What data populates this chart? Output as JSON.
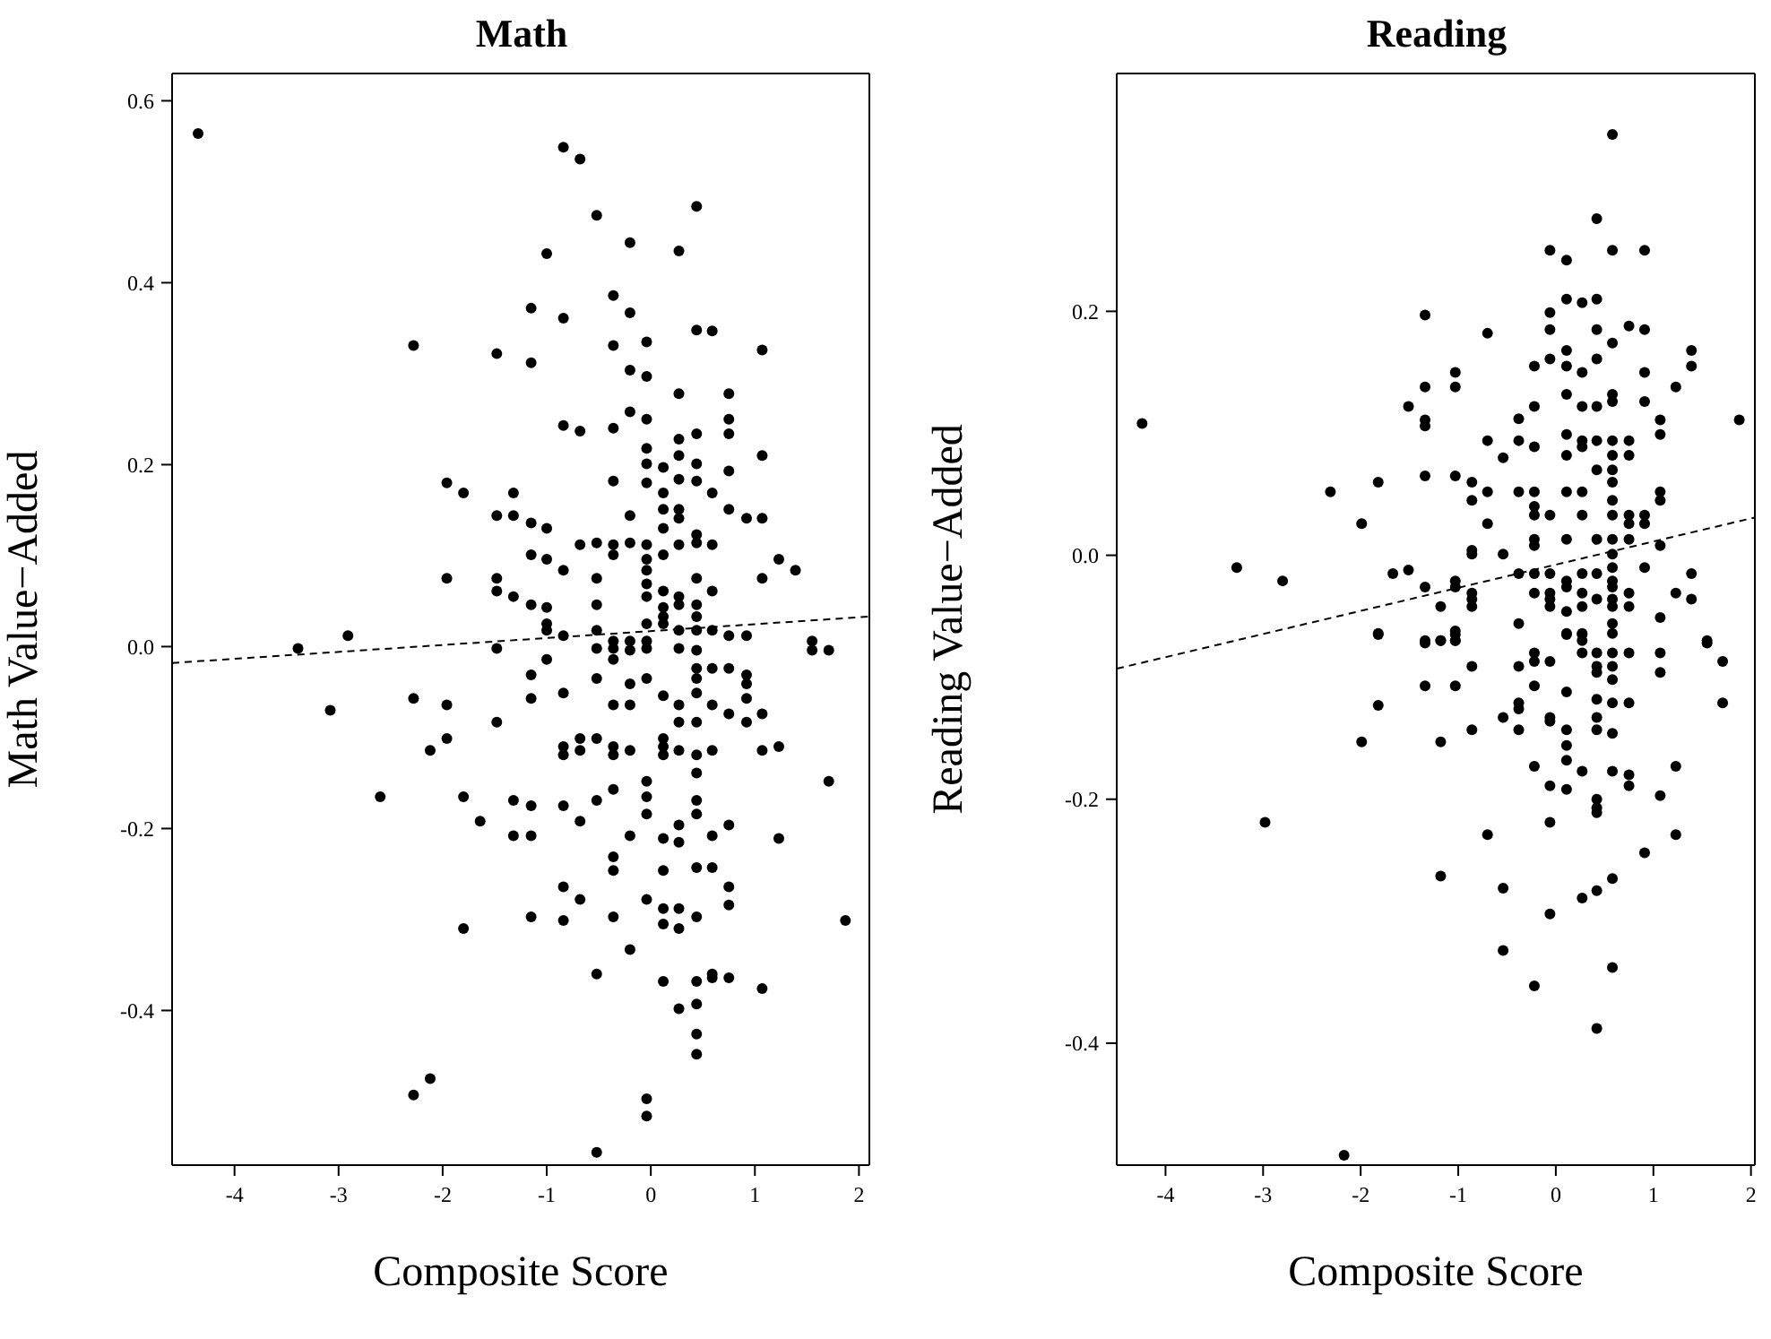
{
  "chart_data": [
    {
      "type": "scatter",
      "title": "Math",
      "xlabel": "Composite Score",
      "ylabel": "Math Value−Added",
      "xlim": [
        -4.6,
        2.1
      ],
      "ylim": [
        -0.57,
        0.63
      ],
      "xticks": [
        -4,
        -3,
        -2,
        -1,
        0,
        1,
        2
      ],
      "yticks": [
        -0.4,
        -0.2,
        {
          "value": 0,
          "label": "0.0"
        },
        0.2,
        0.4,
        0.6
      ],
      "grid": false,
      "marker": "circle",
      "series": [
        {
          "type": "scatter",
          "color": "#000000",
          "x": [
            -4.35,
            -0.84,
            -0.68,
            -0.52,
            0.44,
            -0.2,
            0.27,
            -1.0,
            -0.36,
            -1.15,
            -0.2,
            -0.84,
            0.44,
            0.59,
            -2.28,
            -1.48,
            -1.15,
            -0.36,
            -0.04,
            1.07,
            -0.2,
            -0.04,
            0.27,
            0.75,
            -0.2,
            -0.04,
            0.75,
            -0.84,
            -0.68,
            -0.36,
            0.27,
            0.44,
            -0.04,
            0.75,
            0.27,
            1.07,
            -0.04,
            0.12,
            0.44,
            0.75,
            0.27,
            0.44,
            -0.36,
            -0.04,
            -1.96,
            -1.8,
            -1.32,
            0.12,
            0.59,
            0.12,
            0.27,
            -1.48,
            -1.32,
            -0.2,
            0.27,
            0.75,
            0.92,
            1.07,
            -1.15,
            -1.0,
            0.12,
            0.44,
            -0.68,
            -0.52,
            -0.36,
            -0.2,
            -0.04,
            0.27,
            0.44,
            0.59,
            0.12,
            -0.04,
            -0.36,
            1.23,
            1.39,
            -1.15,
            -1.0,
            -0.84,
            -1.96,
            -1.48,
            -1.48,
            -1.32,
            -1.15,
            -1.0,
            -1.0,
            -0.52,
            -0.52,
            -0.04,
            -0.04,
            -0.04,
            0.12,
            0.12,
            0.12,
            0.27,
            0.27,
            0.44,
            0.44,
            0.44,
            0.59,
            0.44,
            0.27,
            0.12,
            -0.04,
            1.07,
            -2.91,
            -1.0,
            -0.84,
            -0.52,
            0.75,
            0.92,
            1.55,
            -0.36,
            -0.2,
            -0.04,
            0.59,
            -3.39,
            -1.48,
            -1.0,
            -1.15,
            -1.15,
            -0.84,
            -0.52,
            -0.52,
            -0.36,
            -0.36,
            -0.2,
            -0.04,
            0.27,
            0.44,
            0.44,
            0.44,
            0.44,
            0.59,
            0.75,
            0.92,
            0.92,
            1.55,
            1.71,
            -3.08,
            -2.28,
            -1.96,
            -2.12,
            -1.96,
            -1.48,
            -0.84,
            -0.68,
            -0.68,
            -0.84,
            -0.52,
            -0.36,
            -0.36,
            -0.2,
            -0.36,
            -0.2,
            -0.2,
            -0.04,
            0.12,
            0.27,
            0.27,
            0.12,
            0.12,
            0.12,
            0.27,
            0.44,
            0.44,
            0.44,
            0.59,
            0.59,
            0.75,
            0.92,
            0.92,
            1.07,
            1.07,
            1.23,
            1.71,
            -2.6,
            -1.8,
            -1.64,
            -1.32,
            -1.15,
            -1.32,
            -1.15,
            -0.84,
            -0.68,
            -0.52,
            -0.36,
            -0.04,
            -0.04,
            -0.04,
            0.44,
            0.44,
            0.27,
            0.12,
            0.27,
            -0.2,
            0.59,
            0.75,
            1.23,
            -0.36,
            -0.36,
            0.12,
            0.44,
            0.59,
            -0.84,
            -0.68,
            -1.15,
            -0.84,
            -0.36,
            -0.04,
            0.12,
            0.12,
            0.27,
            0.27,
            0.44,
            0.75,
            0.75,
            -1.8,
            1.87,
            -0.2,
            -0.52,
            0.12,
            0.44,
            0.59,
            0.59,
            0.75,
            1.07,
            0.27,
            0.44,
            0.44,
            0.44,
            -2.28,
            -2.12,
            -0.04,
            -0.04,
            -0.52
          ],
          "values": [
            0.564,
            0.549,
            0.536,
            0.474,
            0.484,
            0.444,
            0.435,
            0.432,
            0.386,
            0.372,
            0.367,
            0.361,
            0.348,
            0.347,
            0.331,
            0.322,
            0.312,
            0.331,
            0.335,
            0.326,
            0.304,
            0.297,
            0.278,
            0.278,
            0.258,
            0.25,
            0.25,
            0.243,
            0.237,
            0.24,
            0.228,
            0.234,
            0.218,
            0.234,
            0.21,
            0.21,
            0.201,
            0.197,
            0.201,
            0.193,
            0.184,
            0.182,
            0.182,
            0.18,
            0.18,
            0.169,
            0.169,
            0.169,
            0.169,
            0.151,
            0.151,
            0.144,
            0.144,
            0.144,
            0.141,
            0.151,
            0.141,
            0.141,
            0.136,
            0.13,
            0.13,
            0.123,
            0.112,
            0.114,
            0.112,
            0.114,
            0.112,
            0.112,
            0.114,
            0.112,
            0.101,
            0.096,
            0.101,
            0.096,
            0.084,
            0.101,
            0.096,
            0.084,
            0.075,
            0.075,
            0.061,
            0.055,
            0.046,
            0.043,
            0.025,
            0.075,
            0.046,
            0.084,
            0.069,
            0.055,
            0.061,
            0.043,
            0.033,
            0.055,
            0.046,
            0.075,
            0.046,
            0.033,
            0.061,
            0.018,
            0.018,
            0.025,
            0.025,
            0.075,
            0.012,
            0.018,
            0.012,
            0.018,
            0.012,
            0.012,
            0.006,
            0.006,
            0.006,
            0.006,
            0.018,
            -0.002,
            -0.002,
            -0.014,
            -0.031,
            -0.057,
            -0.051,
            -0.035,
            -0.002,
            -0.002,
            -0.014,
            -0.004,
            -0.002,
            -0.002,
            -0.004,
            -0.024,
            -0.035,
            -0.051,
            -0.024,
            -0.024,
            -0.031,
            -0.041,
            -0.004,
            -0.004,
            -0.07,
            -0.057,
            -0.064,
            -0.114,
            -0.101,
            -0.083,
            -0.11,
            -0.101,
            -0.114,
            -0.119,
            -0.101,
            -0.11,
            -0.119,
            -0.114,
            -0.064,
            -0.064,
            -0.041,
            -0.035,
            -0.054,
            -0.064,
            -0.083,
            -0.101,
            -0.11,
            -0.119,
            -0.114,
            -0.083,
            -0.119,
            -0.139,
            -0.064,
            -0.114,
            -0.074,
            -0.057,
            -0.083,
            -0.074,
            -0.114,
            -0.11,
            -0.148,
            -0.165,
            -0.165,
            -0.192,
            -0.169,
            -0.175,
            -0.208,
            -0.208,
            -0.175,
            -0.192,
            -0.169,
            -0.157,
            -0.148,
            -0.165,
            -0.184,
            -0.169,
            -0.184,
            -0.196,
            -0.211,
            -0.215,
            -0.208,
            -0.208,
            -0.196,
            -0.211,
            -0.231,
            -0.246,
            -0.246,
            -0.243,
            -0.243,
            -0.264,
            -0.278,
            -0.297,
            -0.301,
            -0.297,
            -0.278,
            -0.288,
            -0.305,
            -0.288,
            -0.31,
            -0.297,
            -0.264,
            -0.284,
            -0.31,
            -0.301,
            -0.333,
            -0.36,
            -0.368,
            -0.368,
            -0.36,
            -0.364,
            -0.364,
            -0.376,
            -0.398,
            -0.393,
            -0.426,
            -0.448,
            -0.493,
            -0.475,
            -0.497,
            -0.516,
            -0.556
          ]
        },
        {
          "type": "line",
          "color": "#000000",
          "line_style": "dashed",
          "marker": "none",
          "x": [
            -4.6,
            2.1
          ],
          "values": [
            -0.018,
            0.033
          ]
        }
      ]
    },
    {
      "type": "scatter",
      "title": "Reading",
      "xlabel": "Composite Score",
      "ylabel": "Reading Value−Added",
      "xlim": [
        -4.5,
        2.04
      ],
      "ylim": [
        -0.5,
        0.395
      ],
      "xticks": [
        -4,
        -3,
        -2,
        -1,
        0,
        1,
        2
      ],
      "yticks": [
        -0.4,
        -0.2,
        {
          "value": 0,
          "label": "0.0"
        },
        0.2
      ],
      "grid": false,
      "marker": "circle",
      "series": [
        {
          "type": "scatter",
          "color": "#000000",
          "x": [
            0.58,
            0.42,
            -0.06,
            0.11,
            0.58,
            0.91,
            0.11,
            0.27,
            0.42,
            -0.06,
            -1.34,
            -0.06,
            0.42,
            0.75,
            0.91,
            -0.7,
            0.58,
            0.11,
            0.42,
            -0.22,
            -0.06,
            0.27,
            0.11,
            1.39,
            1.39,
            -1.03,
            -1.03,
            -1.34,
            0.91,
            1.23,
            0.58,
            0.58,
            0.11,
            -1.51,
            -0.22,
            0.27,
            0.42,
            0.91,
            -1.34,
            -1.34,
            -0.38,
            1.07,
            1.07,
            1.88,
            -0.7,
            -0.38,
            -0.22,
            0.11,
            0.27,
            0.27,
            0.42,
            0.58,
            0.75,
            0.75,
            -0.54,
            0.11,
            0.58,
            0.58,
            0.42,
            0.58,
            -2.31,
            -1.82,
            -1.34,
            -1.03,
            -0.86,
            -0.7,
            -0.86,
            -0.38,
            -0.22,
            -0.22,
            0.11,
            0.27,
            0.58,
            0.58,
            1.07,
            1.07,
            -0.22,
            -0.06,
            0.27,
            0.75,
            0.75,
            0.91,
            0.91,
            -1.99,
            -0.7,
            -0.22,
            -0.22,
            0.58,
            0.75,
            -0.54,
            -0.86,
            -0.86,
            0.11,
            0.42,
            0.58,
            1.07,
            -3.27,
            -2.8,
            -1.67,
            -1.51,
            -1.34,
            -0.38,
            -0.22,
            -0.06,
            0.11,
            0.27,
            0.42,
            0.58,
            0.58,
            0.58,
            0.91,
            1.39,
            -1.03,
            -1.03,
            -0.86,
            -0.86,
            -0.22,
            -0.06,
            -0.06,
            0.11,
            0.27,
            0.42,
            0.58,
            0.58,
            0.75,
            -1.18,
            -0.86,
            -0.06,
            0.11,
            0.27,
            0.75,
            1.39,
            1.23,
            1.07,
            -0.38,
            0.11,
            0.27,
            0.27,
            0.58,
            0.58,
            -1.82,
            -1.34,
            -1.18,
            -1.03,
            -1.03,
            1.55,
            -4.24,
            -1.82,
            -1.34,
            -1.18,
            -1.03,
            -1.03,
            -0.06,
            0.11,
            0.27,
            0.42,
            0.58,
            0.75,
            1.07,
            1.07,
            1.55,
            1.71,
            1.71,
            -0.86,
            -0.38,
            -0.22,
            -0.22,
            0.27,
            0.42,
            0.42,
            0.58,
            0.58,
            -1.34,
            -1.03,
            -0.22,
            0.11,
            0.42,
            0.58,
            0.75,
            -1.82,
            -0.54,
            -0.38,
            -0.38,
            -0.38,
            -0.06,
            -0.06,
            0.11,
            0.42,
            0.42,
            0.58,
            -0.86,
            -1.99,
            -1.18,
            0.11,
            0.11,
            -0.22,
            -0.06,
            0.11,
            0.27,
            0.58,
            0.75,
            0.75,
            1.23,
            1.07,
            0.42,
            0.42,
            0.42,
            -2.98,
            -0.06,
            -0.7,
            1.23,
            0.91,
            -1.18,
            -0.54,
            0.58,
            0.42,
            0.27,
            -0.06,
            -0.54,
            0.58,
            -0.22,
            0.42,
            -2.17
          ],
          "values": [
            0.345,
            0.276,
            0.25,
            0.242,
            0.25,
            0.25,
            0.21,
            0.207,
            0.21,
            0.199,
            0.197,
            0.185,
            0.185,
            0.188,
            0.185,
            0.182,
            0.174,
            0.168,
            0.161,
            0.155,
            0.161,
            0.15,
            0.155,
            0.168,
            0.155,
            0.15,
            0.138,
            0.138,
            0.15,
            0.138,
            0.132,
            0.126,
            0.132,
            0.122,
            0.122,
            0.122,
            0.122,
            0.126,
            0.111,
            0.106,
            0.112,
            0.111,
            0.099,
            0.111,
            0.094,
            0.094,
            0.089,
            0.099,
            0.094,
            0.089,
            0.094,
            0.094,
            0.094,
            0.082,
            0.08,
            0.082,
            0.082,
            0.07,
            0.07,
            0.06,
            0.052,
            0.06,
            0.065,
            0.065,
            0.06,
            0.052,
            0.045,
            0.052,
            0.052,
            0.04,
            0.052,
            0.052,
            0.045,
            0.033,
            0.052,
            0.045,
            0.033,
            0.033,
            0.033,
            0.033,
            0.026,
            0.033,
            0.026,
            0.026,
            0.026,
            0.013,
            0.008,
            0.013,
            0.013,
            0.001,
            0.004,
            0.001,
            0.013,
            0.013,
            0.001,
            0.008,
            -0.01,
            -0.021,
            -0.015,
            -0.012,
            -0.026,
            -0.015,
            -0.015,
            -0.015,
            -0.021,
            -0.015,
            -0.015,
            -0.01,
            -0.021,
            -0.026,
            -0.01,
            -0.015,
            -0.021,
            -0.026,
            -0.031,
            -0.036,
            -0.031,
            -0.031,
            -0.036,
            -0.026,
            -0.031,
            -0.036,
            -0.036,
            -0.042,
            -0.031,
            -0.042,
            -0.042,
            -0.042,
            -0.046,
            -0.042,
            -0.042,
            -0.036,
            -0.031,
            -0.051,
            -0.056,
            -0.064,
            -0.064,
            -0.07,
            -0.056,
            -0.064,
            -0.064,
            -0.07,
            -0.07,
            -0.07,
            -0.062,
            -0.07,
            0.108,
            -0.065,
            -0.072,
            -0.07,
            -0.065,
            -0.07,
            -0.087,
            -0.065,
            -0.065,
            -0.08,
            -0.08,
            -0.08,
            -0.08,
            -0.096,
            -0.072,
            -0.087,
            -0.121,
            -0.091,
            -0.091,
            -0.08,
            -0.087,
            -0.08,
            -0.091,
            -0.096,
            -0.091,
            -0.102,
            -0.107,
            -0.107,
            -0.107,
            -0.112,
            -0.118,
            -0.121,
            -0.121,
            -0.123,
            -0.133,
            -0.121,
            -0.126,
            -0.143,
            -0.133,
            -0.136,
            -0.143,
            -0.133,
            -0.143,
            -0.146,
            -0.143,
            -0.153,
            -0.153,
            -0.156,
            -0.168,
            -0.173,
            -0.189,
            -0.192,
            -0.177,
            -0.177,
            -0.18,
            -0.189,
            -0.173,
            -0.197,
            -0.2,
            -0.207,
            -0.211,
            -0.219,
            -0.219,
            -0.229,
            -0.229,
            -0.244,
            -0.263,
            -0.273,
            -0.265,
            -0.275,
            -0.281,
            -0.294,
            -0.324,
            -0.338,
            -0.353,
            -0.388,
            -0.492
          ]
        },
        {
          "type": "line",
          "color": "#000000",
          "line_style": "dashed",
          "marker": "none",
          "x": [
            -4.5,
            2.04
          ],
          "values": [
            -0.093,
            0.031
          ]
        }
      ]
    }
  ]
}
